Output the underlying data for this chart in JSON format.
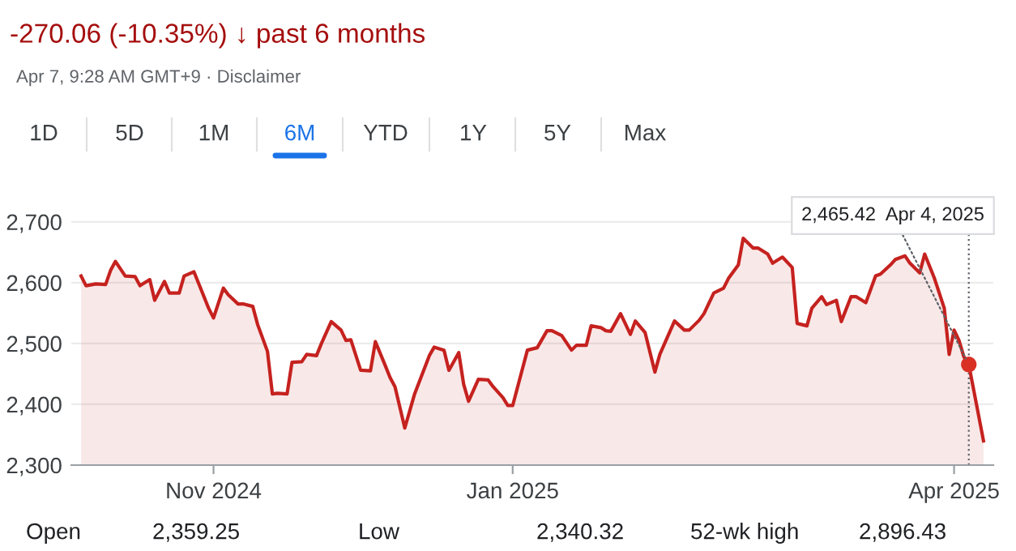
{
  "chart_data": {
    "type": "area",
    "title": "-270.06 (-10.35%) ↓ past 6 months",
    "annotations": [
      "Apr 7, 9:28 AM GMT+9 · Disclaimer",
      "1D",
      "5D",
      "1M",
      "6M",
      "YTD",
      "1Y",
      "5Y",
      "Max",
      "Open",
      "2,359.25",
      "Low",
      "2,340.32",
      "52-wk high",
      "2,896.43",
      {
        "text": "2,465.42  Apr 4, 2025",
        "x": "2025-04-04",
        "y": 2465.42
      }
    ],
    "x": [
      "2024-10-05",
      "2024-10-06",
      "2024-10-08",
      "2024-10-10",
      "2024-10-11",
      "2024-10-12",
      "2024-10-14",
      "2024-10-16",
      "2024-10-17",
      "2024-10-19",
      "2024-10-20",
      "2024-10-22",
      "2024-10-23",
      "2024-10-25",
      "2024-10-26",
      "2024-10-28",
      "2024-10-29",
      "2024-10-31",
      "2024-11-01",
      "2024-11-03",
      "2024-11-04",
      "2024-11-06",
      "2024-11-07",
      "2024-11-09",
      "2024-11-10",
      "2024-11-12",
      "2024-11-13",
      "2024-11-14",
      "2024-11-16",
      "2024-11-17",
      "2024-11-19",
      "2024-11-20",
      "2024-11-22",
      "2024-11-23",
      "2024-11-25",
      "2024-11-27",
      "2024-11-28",
      "2024-11-29",
      "2024-12-01",
      "2024-12-03",
      "2024-12-04",
      "2024-12-06",
      "2024-12-07",
      "2024-12-08",
      "2024-12-10",
      "2024-12-12",
      "2024-12-13",
      "2024-12-15",
      "2024-12-16",
      "2024-12-18",
      "2024-12-19",
      "2024-12-21",
      "2024-12-22",
      "2024-12-23",
      "2024-12-25",
      "2024-12-27",
      "2024-12-28",
      "2024-12-30",
      "2024-12-31",
      "2025-01-01",
      "2025-01-04",
      "2025-01-06",
      "2025-01-08",
      "2025-01-09",
      "2025-01-11",
      "2025-01-13",
      "2025-01-14",
      "2025-01-16",
      "2025-01-17",
      "2025-01-19",
      "2025-01-20",
      "2025-01-21",
      "2025-01-23",
      "2025-01-25",
      "2025-01-26",
      "2025-01-28",
      "2025-01-30",
      "2025-01-31",
      "2025-02-03",
      "2025-02-05",
      "2025-02-06",
      "2025-02-08",
      "2025-02-09",
      "2025-02-11",
      "2025-02-13",
      "2025-02-14",
      "2025-02-16",
      "2025-02-17",
      "2025-02-19",
      "2025-02-20",
      "2025-02-22",
      "2025-02-23",
      "2025-02-25",
      "2025-02-27",
      "2025-02-28",
      "2025-03-02",
      "2025-03-03",
      "2025-03-05",
      "2025-03-06",
      "2025-03-08",
      "2025-03-09",
      "2025-03-11",
      "2025-03-12",
      "2025-03-14",
      "2025-03-16",
      "2025-03-17",
      "2025-03-19",
      "2025-03-20",
      "2025-03-22",
      "2025-03-23",
      "2025-03-25",
      "2025-03-26",
      "2025-03-28",
      "2025-03-30",
      "2025-03-31",
      "2025-04-01",
      "2025-04-02",
      "2025-04-03",
      "2025-04-04",
      "2025-04-07"
    ],
    "series": [
      {
        "color": "#c5221f",
        "values": [
          2611,
          2595,
          2598,
          2597,
          2620,
          2635,
          2611,
          2610,
          2595,
          2605,
          2571,
          2602,
          2583,
          2583,
          2611,
          2618,
          2598,
          2558,
          2542,
          2591,
          2580,
          2565,
          2565,
          2561,
          2531,
          2487,
          2417,
          2418,
          2417,
          2469,
          2470,
          2482,
          2480,
          2500,
          2536,
          2522,
          2505,
          2506,
          2456,
          2455,
          2503,
          2464,
          2444,
          2429,
          2361,
          2417,
          2438,
          2480,
          2494,
          2489,
          2456,
          2485,
          2433,
          2405,
          2441,
          2440,
          2429,
          2411,
          2398,
          2398,
          2489,
          2493,
          2521,
          2521,
          2513,
          2489,
          2497,
          2497,
          2529,
          2526,
          2521,
          2520,
          2549,
          2515,
          2537,
          2518,
          2453,
          2482,
          2537,
          2522,
          2522,
          2538,
          2549,
          2583,
          2591,
          2607,
          2629,
          2673,
          2657,
          2657,
          2647,
          2632,
          2642,
          2625,
          2533,
          2529,
          2558,
          2577,
          2564,
          2571,
          2536,
          2577,
          2577,
          2567,
          2611,
          2614,
          2629,
          2638,
          2644,
          2632,
          2616,
          2647,
          2607,
          2558,
          2482,
          2522,
          2505,
          2478,
          2465.42,
          2340
        ]
      }
    ],
    "xlim": [
      "2024-10-03",
      "2025-04-09"
    ],
    "xticks": [
      {
        "value": "2024-11-01",
        "label": "Nov 2024"
      },
      {
        "value": "2025-01-01",
        "label": "Jan 2025"
      },
      {
        "value": "2025-04-01",
        "label": "Apr 2025"
      }
    ],
    "ylim": [
      2300,
      2745
    ],
    "yticks": [
      {
        "value": 2300,
        "label": "2,300"
      },
      {
        "value": 2400,
        "label": "2,400"
      },
      {
        "value": 2500,
        "label": "2,500"
      },
      {
        "value": 2600,
        "label": "2,600"
      },
      {
        "value": 2700,
        "label": "2,700"
      }
    ],
    "ref_lines": [
      {
        "axis": "x",
        "value": "2025-04-04",
        "color": "#5f6368",
        "line_style": "dotted"
      }
    ],
    "grid": "y",
    "legend": false,
    "marker": "none",
    "line_style": "solid"
  }
}
